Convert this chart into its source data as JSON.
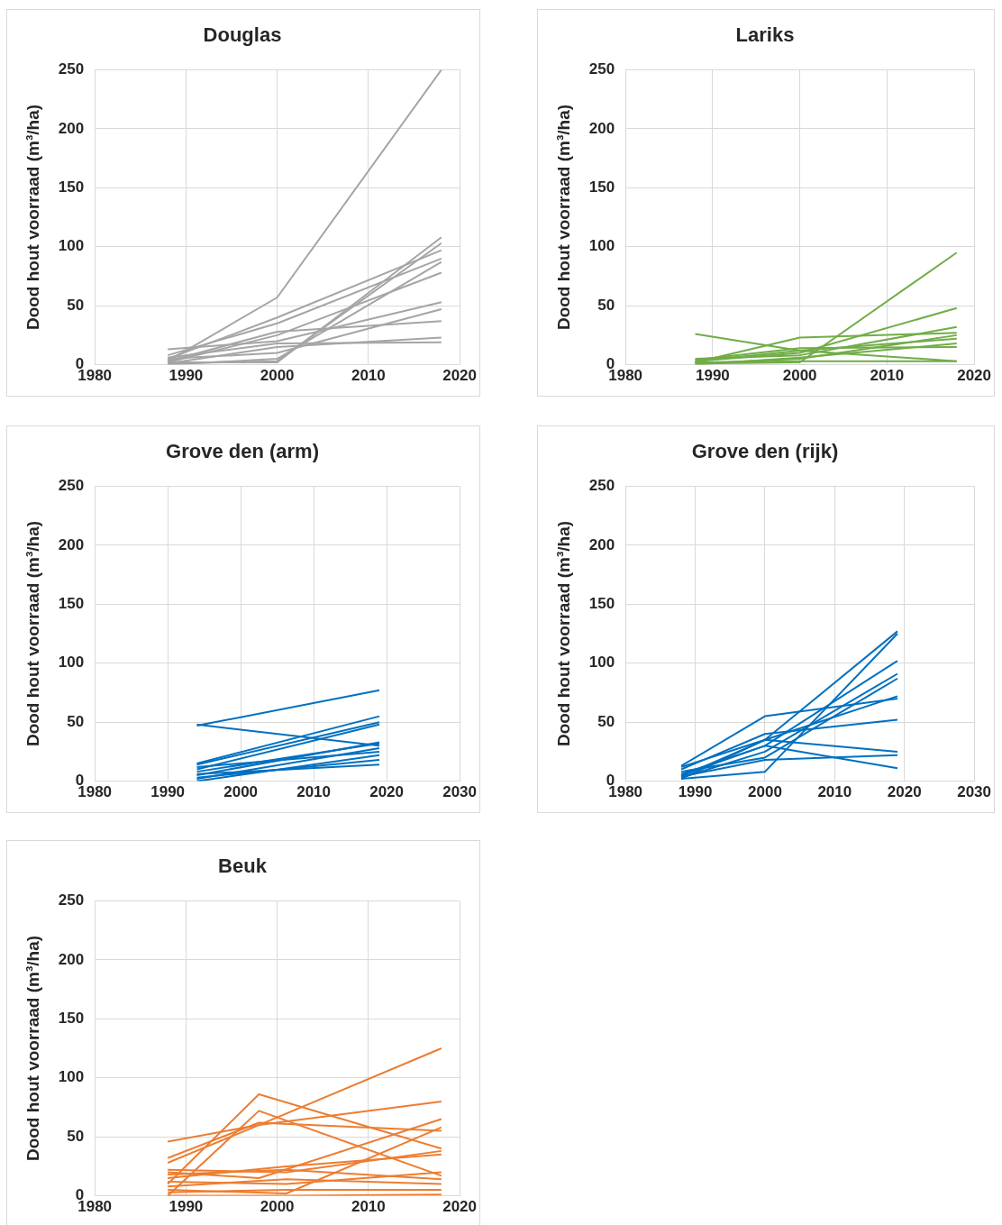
{
  "chart_data": [
    {
      "type": "line",
      "title": "Douglas",
      "ylabel": "Dood hout voorraad (m³/ha)",
      "xlim": [
        1980,
        2020
      ],
      "xticks": [
        1980,
        1990,
        2000,
        2010,
        2020
      ],
      "ylim": [
        0,
        250
      ],
      "yticks": [
        0,
        50,
        100,
        150,
        200,
        250
      ],
      "grid": true,
      "marker": "none",
      "series": [
        {
          "color": "#a5a5a5",
          "x": [
            1988,
            2000,
            2018
          ],
          "values": [
            3,
            57,
            250
          ]
        },
        {
          "color": "#a5a5a5",
          "x": [
            1988,
            2000,
            2018
          ],
          "values": [
            2,
            2,
            108
          ]
        },
        {
          "color": "#a5a5a5",
          "x": [
            1988,
            2000,
            2018
          ],
          "values": [
            5,
            40,
            97
          ]
        },
        {
          "color": "#a5a5a5",
          "x": [
            1988,
            2000,
            2018
          ],
          "values": [
            1,
            3,
            103
          ]
        },
        {
          "color": "#a5a5a5",
          "x": [
            1988,
            2000,
            2018
          ],
          "values": [
            8,
            35,
            90
          ]
        },
        {
          "color": "#a5a5a5",
          "x": [
            1988,
            2000,
            2018
          ],
          "values": [
            0,
            5,
            87
          ]
        },
        {
          "color": "#a5a5a5",
          "x": [
            1988,
            2000,
            2018
          ],
          "values": [
            2,
            25,
            78
          ]
        },
        {
          "color": "#a5a5a5",
          "x": [
            1988,
            2000,
            2018
          ],
          "values": [
            13,
            20,
            53
          ]
        },
        {
          "color": "#a5a5a5",
          "x": [
            1988,
            2000,
            2018
          ],
          "values": [
            5,
            10,
            47
          ]
        },
        {
          "color": "#a5a5a5",
          "x": [
            1988,
            2000,
            2018
          ],
          "values": [
            3,
            28,
            37
          ]
        },
        {
          "color": "#a5a5a5",
          "x": [
            1988,
            2000,
            2018
          ],
          "values": [
            1,
            15,
            23
          ]
        },
        {
          "color": "#a5a5a5",
          "x": [
            1988,
            2000,
            2018
          ],
          "values": [
            6,
            18,
            19
          ]
        }
      ]
    },
    {
      "type": "line",
      "title": "Lariks",
      "ylabel": "Dood hout voorraad (m³/ha)",
      "xlim": [
        1980,
        2020
      ],
      "xticks": [
        1980,
        1990,
        2000,
        2010,
        2020
      ],
      "ylim": [
        0,
        250
      ],
      "yticks": [
        0,
        50,
        100,
        150,
        200,
        250
      ],
      "grid": true,
      "marker": "none",
      "series": [
        {
          "color": "#70ad47",
          "x": [
            1988,
            2000,
            2018
          ],
          "values": [
            1,
            2,
            95
          ]
        },
        {
          "color": "#70ad47",
          "x": [
            1988,
            2000,
            2018
          ],
          "values": [
            26,
            12,
            3
          ]
        },
        {
          "color": "#70ad47",
          "x": [
            1988,
            2000,
            2018
          ],
          "values": [
            3,
            10,
            48
          ]
        },
        {
          "color": "#70ad47",
          "x": [
            1988,
            2000,
            2018
          ],
          "values": [
            2,
            23,
            27
          ]
        },
        {
          "color": "#70ad47",
          "x": [
            1988,
            2000,
            2018
          ],
          "values": [
            5,
            8,
            32
          ]
        },
        {
          "color": "#70ad47",
          "x": [
            1988,
            2000,
            2018
          ],
          "values": [
            1,
            5,
            25
          ]
        },
        {
          "color": "#70ad47",
          "x": [
            1988,
            2000,
            2018
          ],
          "values": [
            3,
            12,
            22
          ]
        },
        {
          "color": "#70ad47",
          "x": [
            1988,
            2000,
            2018
          ],
          "values": [
            0,
            6,
            18
          ]
        },
        {
          "color": "#70ad47",
          "x": [
            1988,
            2000,
            2018
          ],
          "values": [
            4,
            14,
            15
          ]
        },
        {
          "color": "#70ad47",
          "x": [
            1988,
            2000,
            2018
          ],
          "values": [
            2,
            3,
            3
          ]
        }
      ]
    },
    {
      "type": "line",
      "title": "Grove den (arm)",
      "ylabel": "Dood hout voorraad (m³/ha)",
      "xlim": [
        1980,
        2030
      ],
      "xticks": [
        1980,
        1990,
        2000,
        2010,
        2020,
        2030
      ],
      "ylim": [
        0,
        250
      ],
      "yticks": [
        0,
        50,
        100,
        150,
        200,
        250
      ],
      "grid": true,
      "marker": "none",
      "series": [
        {
          "color": "#0070c0",
          "x": [
            1994,
            2019
          ],
          "values": [
            47,
            77
          ]
        },
        {
          "color": "#0070c0",
          "x": [
            1994,
            2019
          ],
          "values": [
            48,
            30
          ]
        },
        {
          "color": "#0070c0",
          "x": [
            1994,
            2019
          ],
          "values": [
            15,
            55
          ]
        },
        {
          "color": "#0070c0",
          "x": [
            1994,
            2019
          ],
          "values": [
            14,
            50
          ]
        },
        {
          "color": "#0070c0",
          "x": [
            1994,
            2019
          ],
          "values": [
            10,
            48
          ]
        },
        {
          "color": "#0070c0",
          "x": [
            1994,
            2019
          ],
          "values": [
            5,
            33
          ]
        },
        {
          "color": "#0070c0",
          "x": [
            1994,
            2019
          ],
          "values": [
            8,
            32
          ]
        },
        {
          "color": "#0070c0",
          "x": [
            1994,
            2019
          ],
          "values": [
            2,
            28
          ]
        },
        {
          "color": "#0070c0",
          "x": [
            1994,
            2019
          ],
          "values": [
            0,
            22
          ]
        },
        {
          "color": "#0070c0",
          "x": [
            1994,
            2019
          ],
          "values": [
            3,
            18
          ]
        },
        {
          "color": "#0070c0",
          "x": [
            1994,
            2019
          ],
          "values": [
            6,
            14
          ]
        },
        {
          "color": "#0070c0",
          "x": [
            1994,
            2019
          ],
          "values": [
            12,
            25
          ]
        }
      ]
    },
    {
      "type": "line",
      "title": "Grove den (rijk)",
      "ylabel": "Dood hout voorraad (m³/ha)",
      "xlim": [
        1980,
        2030
      ],
      "xticks": [
        1980,
        1990,
        2000,
        2010,
        2020,
        2030
      ],
      "ylim": [
        0,
        250
      ],
      "yticks": [
        0,
        50,
        100,
        150,
        200,
        250
      ],
      "grid": true,
      "marker": "none",
      "series": [
        {
          "color": "#0070c0",
          "x": [
            1988,
            2000,
            2019
          ],
          "values": [
            4,
            35,
            127
          ]
        },
        {
          "color": "#0070c0",
          "x": [
            1988,
            2000,
            2019
          ],
          "values": [
            2,
            8,
            125
          ]
        },
        {
          "color": "#0070c0",
          "x": [
            1988,
            2000,
            2019
          ],
          "values": [
            13,
            55,
            70
          ]
        },
        {
          "color": "#0070c0",
          "x": [
            1988,
            2000,
            2019
          ],
          "values": [
            6,
            30,
            102
          ]
        },
        {
          "color": "#0070c0",
          "x": [
            1988,
            2000,
            2019
          ],
          "values": [
            3,
            25,
            91
          ]
        },
        {
          "color": "#0070c0",
          "x": [
            1988,
            2000,
            2019
          ],
          "values": [
            8,
            20,
            87
          ]
        },
        {
          "color": "#0070c0",
          "x": [
            1988,
            2000,
            2019
          ],
          "values": [
            2,
            35,
            72
          ]
        },
        {
          "color": "#0070c0",
          "x": [
            1988,
            2000,
            2019
          ],
          "values": [
            10,
            40,
            52
          ]
        },
        {
          "color": "#0070c0",
          "x": [
            1988,
            2000,
            2019
          ],
          "values": [
            12,
            35,
            25
          ]
        },
        {
          "color": "#0070c0",
          "x": [
            1988,
            2000,
            2019
          ],
          "values": [
            5,
            30,
            11
          ]
        },
        {
          "color": "#0070c0",
          "x": [
            1988,
            2000,
            2019
          ],
          "values": [
            4,
            18,
            22
          ]
        }
      ]
    },
    {
      "type": "line",
      "title": "Beuk",
      "ylabel": "Dood hout voorraad (m³/ha)",
      "xlim": [
        1980,
        2020
      ],
      "xticks": [
        1980,
        1990,
        2000,
        2010,
        2020
      ],
      "ylim": [
        0,
        250
      ],
      "yticks": [
        0,
        50,
        100,
        150,
        200,
        250
      ],
      "grid": true,
      "marker": "none",
      "series": [
        {
          "color": "#ed7d31",
          "x": [
            1988,
            1998,
            2018
          ],
          "values": [
            10,
            86,
            40
          ]
        },
        {
          "color": "#ed7d31",
          "x": [
            1988,
            1998,
            2018
          ],
          "values": [
            0,
            72,
            17
          ]
        },
        {
          "color": "#ed7d31",
          "x": [
            1988,
            1998,
            2018
          ],
          "values": [
            46,
            60,
            80
          ]
        },
        {
          "color": "#ed7d31",
          "x": [
            1988,
            1998,
            2018
          ],
          "values": [
            28,
            60,
            125
          ]
        },
        {
          "color": "#ed7d31",
          "x": [
            1988,
            1998,
            2018
          ],
          "values": [
            32,
            62,
            55
          ]
        },
        {
          "color": "#ed7d31",
          "x": [
            1988,
            1998,
            2018
          ],
          "values": [
            20,
            15,
            65
          ]
        },
        {
          "color": "#ed7d31",
          "x": [
            1988,
            2001,
            2018
          ],
          "values": [
            5,
            2,
            58
          ]
        },
        {
          "color": "#ed7d31",
          "x": [
            1988,
            2001,
            2018
          ],
          "values": [
            22,
            20,
            38
          ]
        },
        {
          "color": "#ed7d31",
          "x": [
            1988,
            2001,
            2018
          ],
          "values": [
            15,
            25,
            35
          ]
        },
        {
          "color": "#ed7d31",
          "x": [
            1988,
            2001,
            2018
          ],
          "values": [
            12,
            10,
            20
          ]
        },
        {
          "color": "#ed7d31",
          "x": [
            1988,
            2001,
            2018
          ],
          "values": [
            8,
            14,
            10
          ]
        },
        {
          "color": "#ed7d31",
          "x": [
            1988,
            2001,
            2018
          ],
          "values": [
            3,
            5,
            5
          ]
        },
        {
          "color": "#ed7d31",
          "x": [
            1988,
            2001,
            2018
          ],
          "values": [
            18,
            22,
            14
          ]
        },
        {
          "color": "#ed7d31",
          "x": [
            1988,
            2001,
            2018
          ],
          "values": [
            0,
            0,
            1
          ]
        }
      ]
    }
  ]
}
